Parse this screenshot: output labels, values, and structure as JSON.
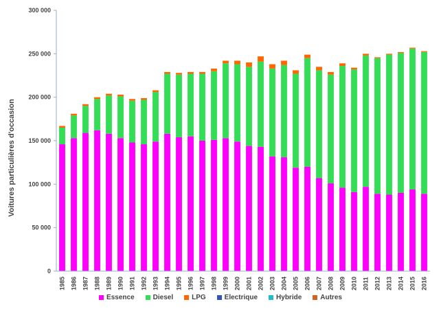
{
  "chart_data": {
    "type": "bar",
    "stacked": true,
    "ylabel": "Voitures particulières d'occasion",
    "xlabel": "",
    "title": "",
    "ylim": [
      0,
      300000
    ],
    "yticks": [
      0,
      50000,
      100000,
      150000,
      200000,
      250000,
      300000
    ],
    "ytick_labels": [
      "0",
      "50 000",
      "100 000",
      "150 000",
      "200 000",
      "250 000",
      "300 000"
    ],
    "categories": [
      "1985",
      "1986",
      "1987",
      "1988",
      "1989",
      "1990",
      "1991",
      "1992",
      "1993",
      "1994",
      "1995",
      "1996",
      "1997",
      "1998",
      "1999",
      "2000",
      "2001",
      "2002",
      "2003",
      "2004",
      "2005",
      "2006",
      "2007",
      "2008",
      "2009",
      "2010",
      "2011",
      "2012",
      "2013",
      "2014",
      "2015",
      "2016"
    ],
    "series": [
      {
        "name": "Essence",
        "color": "#ff00ff",
        "values": [
          146000,
          153000,
          159000,
          162000,
          158000,
          153000,
          148000,
          146000,
          149000,
          158000,
          154000,
          155000,
          150000,
          151000,
          153000,
          149000,
          144000,
          143000,
          132000,
          131000,
          119000,
          120000,
          107000,
          101000,
          96000,
          91000,
          97000,
          89000,
          88000,
          90000,
          94000,
          89000
        ]
      },
      {
        "name": "Diesel",
        "color": "#33dd55",
        "values": [
          19000,
          26000,
          31000,
          36000,
          44000,
          48000,
          48000,
          51000,
          57000,
          69000,
          72000,
          72000,
          77000,
          79000,
          86000,
          89000,
          91000,
          98000,
          101000,
          106000,
          108000,
          125000,
          124000,
          125000,
          140000,
          141000,
          151000,
          156000,
          161000,
          161000,
          162000,
          163000
        ]
      },
      {
        "name": "LPG",
        "color": "#ff6600",
        "values": [
          2000,
          2000,
          2000,
          2000,
          2000,
          2000,
          2000,
          2000,
          2000,
          2000,
          2000,
          2000,
          2000,
          3000,
          3000,
          4000,
          5000,
          6000,
          5000,
          5000,
          4000,
          4000,
          4000,
          3000,
          3000,
          2000,
          2000,
          1000,
          1000,
          1000,
          1000,
          1000
        ]
      },
      {
        "name": "Electrique",
        "color": "#3355bb",
        "values": [
          0,
          0,
          0,
          0,
          0,
          0,
          0,
          0,
          0,
          0,
          0,
          0,
          0,
          0,
          0,
          0,
          0,
          0,
          0,
          0,
          0,
          0,
          0,
          0,
          0,
          0,
          0,
          0,
          0,
          0,
          0,
          0
        ]
      },
      {
        "name": "Hybride",
        "color": "#22bbcc",
        "values": [
          0,
          0,
          0,
          0,
          0,
          0,
          0,
          0,
          0,
          0,
          0,
          0,
          0,
          0,
          0,
          0,
          0,
          0,
          0,
          0,
          0,
          0,
          0,
          0,
          0,
          0,
          0,
          0,
          0,
          0,
          0,
          0
        ]
      },
      {
        "name": "Autres",
        "color": "#cc6622",
        "values": [
          0,
          0,
          0,
          0,
          0,
          0,
          0,
          0,
          0,
          0,
          0,
          0,
          0,
          0,
          0,
          0,
          0,
          0,
          0,
          0,
          0,
          0,
          0,
          0,
          0,
          0,
          0,
          0,
          0,
          0,
          0,
          0
        ]
      }
    ],
    "grid": false,
    "legend_position": "bottom"
  }
}
